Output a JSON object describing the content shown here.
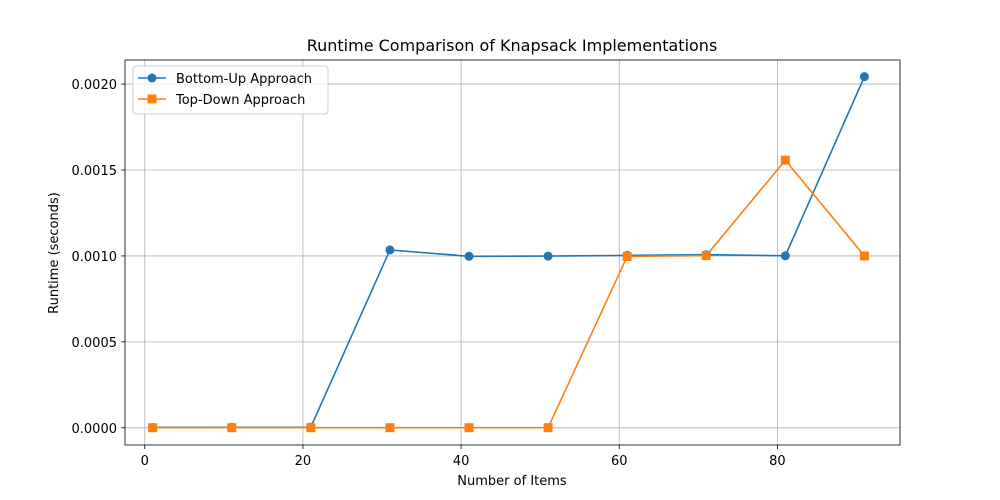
{
  "chart_data": {
    "type": "line",
    "title": "Runtime Comparison of Knapsack Implementations",
    "xlabel": "Number of Items",
    "ylabel": "Runtime (seconds)",
    "x": [
      1,
      11,
      21,
      31,
      41,
      51,
      61,
      71,
      81,
      91
    ],
    "xlim": [
      -2.5,
      95.5
    ],
    "ylim": [
      -0.0001,
      0.00214
    ],
    "xticks": [
      0,
      20,
      40,
      60,
      80
    ],
    "xtick_labels": [
      "0",
      "20",
      "40",
      "60",
      "80"
    ],
    "yticks": [
      0.0,
      0.0005,
      0.001,
      0.0015,
      0.002
    ],
    "ytick_labels": [
      "0.0000",
      "0.0005",
      "0.0010",
      "0.0015",
      "0.0020"
    ],
    "grid": true,
    "legend_position": "top-left",
    "series": [
      {
        "name": "Bottom-Up Approach",
        "color": "#1f77b4",
        "marker": "circle",
        "values": [
          2e-06,
          3e-06,
          4e-06,
          0.001035,
          0.000998,
          0.000999,
          0.001003,
          0.001007,
          0.001001,
          0.002043
        ]
      },
      {
        "name": "Top-Down Approach",
        "color": "#ff7f0e",
        "marker": "square",
        "values": [
          5e-07,
          5e-07,
          5e-07,
          5e-07,
          5e-07,
          5e-07,
          0.000997,
          0.001002,
          0.001557,
          0.001
        ]
      }
    ]
  }
}
